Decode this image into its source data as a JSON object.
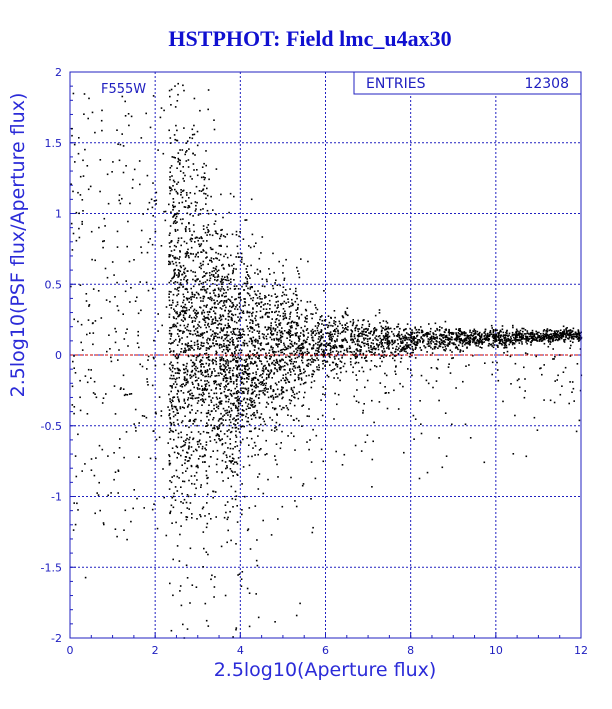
{
  "chart_data": {
    "type": "scatter",
    "title": "HSTPHOT: Field lmc_u4ax30",
    "xlabel": "2.5log10(Aperture flux)",
    "ylabel": "2.5log10(PSF flux/Aperture flux)",
    "xlim": [
      0,
      12
    ],
    "ylim": [
      -2,
      2
    ],
    "x_ticks": [
      0,
      2,
      4,
      6,
      8,
      10,
      12
    ],
    "y_ticks": [
      -2,
      -1.5,
      -1,
      -0.5,
      0,
      0.5,
      1,
      1.5,
      2
    ],
    "filter_label": "F555W",
    "stats_box": {
      "label": "ENTRIES",
      "value": "12308"
    },
    "reference_line": {
      "y": 0,
      "color": "#cc0000",
      "style": "dashed"
    },
    "grid": true,
    "colors": {
      "title": "#1010d0",
      "axes": "#2020c0",
      "points": "#000000",
      "reference": "#cc0000"
    },
    "points_summary": {
      "count": 12308,
      "trend": [
        {
          "x": 2.5,
          "y_center": 0.3,
          "spread": 0.75
        },
        {
          "x": 3.5,
          "y_center": 0.1,
          "spread": 0.45
        },
        {
          "x": 4.0,
          "y_center": 0.0,
          "spread": 0.4
        },
        {
          "x": 5.0,
          "y_center": 0.07,
          "spread": 0.25
        },
        {
          "x": 6.0,
          "y_center": 0.09,
          "spread": 0.12
        },
        {
          "x": 8.0,
          "y_center": 0.11,
          "spread": 0.05
        },
        {
          "x": 10.0,
          "y_center": 0.13,
          "spread": 0.03
        },
        {
          "x": 12.0,
          "y_center": 0.15,
          "spread": 0.02
        }
      ]
    }
  }
}
